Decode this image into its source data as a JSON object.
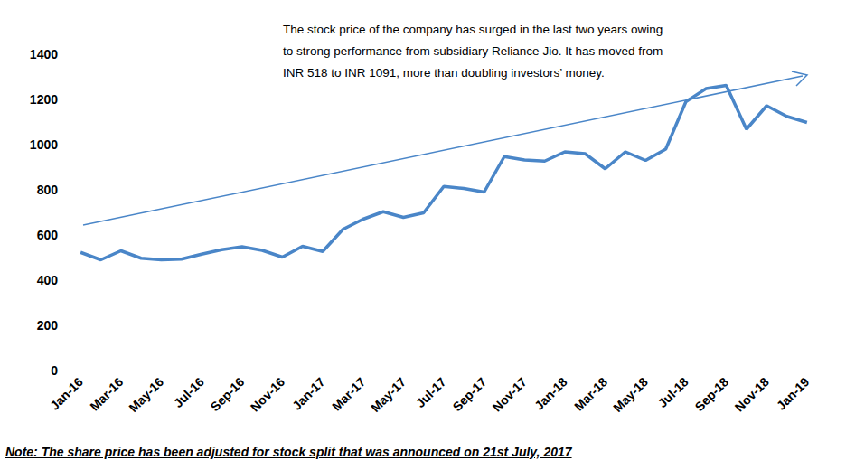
{
  "chart_data": {
    "type": "line",
    "annotations": [
      "The stock price of the company has surged in the last two years owing\nto strong performance from subsidiary Reliance Jio. It has moved from\nINR 518 to INR 1091, more than doubling investors’ money."
    ],
    "note": "Note: The share price has been adjusted for stock split that was announced on 21st July, 2017",
    "categories": [
      "Jan-16",
      null,
      "Mar-16",
      null,
      "May-16",
      null,
      "Jul-16",
      null,
      "Sep-16",
      null,
      "Nov-16",
      null,
      "Jan-17",
      null,
      "Mar-17",
      null,
      "May-17",
      null,
      "Jul-17",
      null,
      "Sep-17",
      null,
      "Nov-17",
      null,
      "Jan-18",
      null,
      "Mar-18",
      null,
      "May-18",
      null,
      "Jul-18",
      null,
      "Sep-18",
      null,
      "Nov-18",
      null,
      "Jan-19"
    ],
    "values": [
      523,
      490,
      530,
      497,
      490,
      493,
      515,
      535,
      548,
      532,
      502,
      550,
      527,
      625,
      670,
      703,
      678,
      698,
      815,
      806,
      790,
      947,
      932,
      927,
      968,
      960,
      893,
      968,
      930,
      980,
      1190,
      1248,
      1262,
      1068,
      1172,
      1125,
      1098
    ],
    "color": "#4a86c8",
    "ylim": [
      0,
      1400
    ],
    "yticks": [
      0,
      200,
      400,
      600,
      800,
      1000,
      1200,
      1400
    ],
    "grid": false
  }
}
